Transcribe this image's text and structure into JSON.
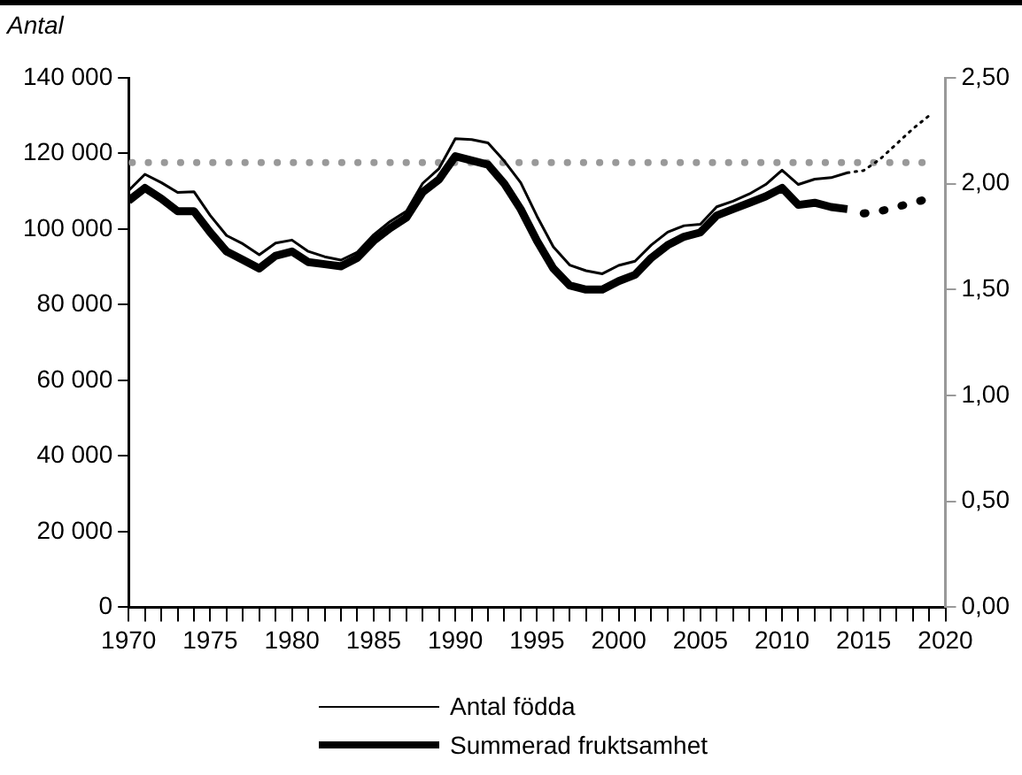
{
  "chart_data": {
    "type": "line",
    "ylabel": "Antal",
    "legend": "bottom",
    "grid": false,
    "marker": "none",
    "x": [
      1970,
      1971,
      1972,
      1973,
      1974,
      1975,
      1976,
      1977,
      1978,
      1979,
      1980,
      1981,
      1982,
      1983,
      1984,
      1985,
      1986,
      1987,
      1988,
      1989,
      1990,
      1991,
      1992,
      1993,
      1994,
      1995,
      1996,
      1997,
      1998,
      1999,
      2000,
      2001,
      2002,
      2003,
      2004,
      2005,
      2006,
      2007,
      2008,
      2009,
      2010,
      2011,
      2012,
      2013,
      2014
    ],
    "xlim": [
      1970,
      2020
    ],
    "xticks": [
      1970,
      {
        "value": 1971,
        "label": null
      },
      {
        "value": 1972,
        "label": null
      },
      {
        "value": 1973,
        "label": null
      },
      {
        "value": 1974,
        "label": null
      },
      1975,
      {
        "value": 1976,
        "label": null
      },
      {
        "value": 1977,
        "label": null
      },
      {
        "value": 1978,
        "label": null
      },
      {
        "value": 1979,
        "label": null
      },
      1980,
      {
        "value": 1981,
        "label": null
      },
      {
        "value": 1982,
        "label": null
      },
      {
        "value": 1983,
        "label": null
      },
      {
        "value": 1984,
        "label": null
      },
      1985,
      {
        "value": 1986,
        "label": null
      },
      {
        "value": 1987,
        "label": null
      },
      {
        "value": 1988,
        "label": null
      },
      {
        "value": 1989,
        "label": null
      },
      1990,
      {
        "value": 1991,
        "label": null
      },
      {
        "value": 1992,
        "label": null
      },
      {
        "value": 1993,
        "label": null
      },
      {
        "value": 1994,
        "label": null
      },
      1995,
      {
        "value": 1996,
        "label": null
      },
      {
        "value": 1997,
        "label": null
      },
      {
        "value": 1998,
        "label": null
      },
      {
        "value": 1999,
        "label": null
      },
      2000,
      {
        "value": 2001,
        "label": null
      },
      {
        "value": 2002,
        "label": null
      },
      {
        "value": 2003,
        "label": null
      },
      {
        "value": 2004,
        "label": null
      },
      2005,
      {
        "value": 2006,
        "label": null
      },
      {
        "value": 2007,
        "label": null
      },
      {
        "value": 2008,
        "label": null
      },
      {
        "value": 2009,
        "label": null
      },
      2010,
      {
        "value": 2011,
        "label": null
      },
      {
        "value": 2012,
        "label": null
      },
      {
        "value": 2013,
        "label": null
      },
      {
        "value": 2014,
        "label": null
      },
      2015,
      {
        "value": 2016,
        "label": null
      },
      {
        "value": 2017,
        "label": null
      },
      {
        "value": 2018,
        "label": null
      },
      {
        "value": 2019,
        "label": null
      },
      2020
    ],
    "ylim": [
      0,
      140000
    ],
    "yticks": [
      0,
      {
        "value": 20000,
        "label": "20 000"
      },
      {
        "value": 40000,
        "label": "40 000"
      },
      {
        "value": 60000,
        "label": "60 000"
      },
      {
        "value": 80000,
        "label": "80 000"
      },
      {
        "value": 100000,
        "label": "100 000"
      },
      {
        "value": 120000,
        "label": "120 000"
      },
      {
        "value": 140000,
        "label": "140 000"
      }
    ],
    "y2lim": [
      0,
      2.5
    ],
    "y2ticks": [
      {
        "value": 0,
        "label": "0,00"
      },
      {
        "value": 0.5,
        "label": "0,50"
      },
      {
        "value": 1,
        "label": "1,00"
      },
      {
        "value": 1.5,
        "label": "1,50"
      },
      {
        "value": 2,
        "label": "2,00"
      },
      {
        "value": 2.5,
        "label": "2,50"
      }
    ],
    "ref_lines": [
      {
        "axis": "y2",
        "value": 2.1,
        "label": null,
        "color": "#999999",
        "line_style": "dotted"
      }
    ],
    "series": [
      {
        "name": "Antal födda",
        "color": "#000000",
        "line_style": "solid",
        "values": [
          110200,
          114500,
          112300,
          109700,
          109900,
          103600,
          98300,
          96100,
          93200,
          96300,
          97100,
          94100,
          92700,
          91800,
          93900,
          98500,
          102000,
          104700,
          112100,
          116000,
          123900,
          123700,
          122800,
          118000,
          112300,
          103400,
          95300,
          90500,
          89000,
          88200,
          90400,
          91500,
          95800,
          99200,
          100900,
          101300,
          105900,
          107400,
          109300,
          111800,
          115600,
          111800,
          113200,
          113600,
          114900
        ]
      },
      {
        "color": "#000000",
        "line_style": "dotted",
        "x": [
          2014,
          2015,
          2016,
          2017,
          2018,
          2019
        ],
        "values": [
          114900,
          115500,
          118500,
          122500,
          126500,
          130000
        ]
      },
      {
        "name": "Summerad fruktsamhet",
        "color": "#000000",
        "axis": "y2",
        "line_style": "solid",
        "values": [
          1.92,
          1.98,
          1.93,
          1.87,
          1.87,
          1.77,
          1.68,
          1.64,
          1.6,
          1.66,
          1.68,
          1.63,
          1.62,
          1.61,
          1.65,
          1.73,
          1.79,
          1.84,
          1.96,
          2.02,
          2.13,
          2.11,
          2.09,
          2.0,
          1.88,
          1.73,
          1.6,
          1.52,
          1.5,
          1.5,
          1.54,
          1.57,
          1.65,
          1.71,
          1.75,
          1.77,
          1.85,
          1.88,
          1.91,
          1.94,
          1.98,
          1.9,
          1.91,
          1.89,
          1.88
        ]
      },
      {
        "color": "#000000",
        "axis": "y2",
        "line_style": "dotted",
        "x": [
          2015,
          2016,
          2017,
          2018,
          2019
        ],
        "values": [
          1.86,
          1.87,
          1.89,
          1.91,
          1.93
        ]
      }
    ]
  }
}
